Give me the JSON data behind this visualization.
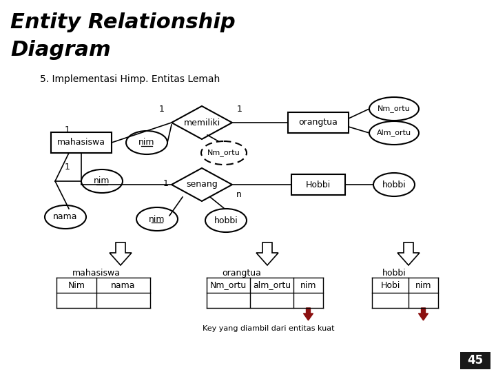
{
  "title_line1": "Entity Relationship",
  "title_line2": "Diagram",
  "subtitle": "5. Implementasi Himp. Entitas Lemah",
  "bg_color": "#ffffff",
  "title_color": "#000000",
  "subtitle_color": "#000000"
}
